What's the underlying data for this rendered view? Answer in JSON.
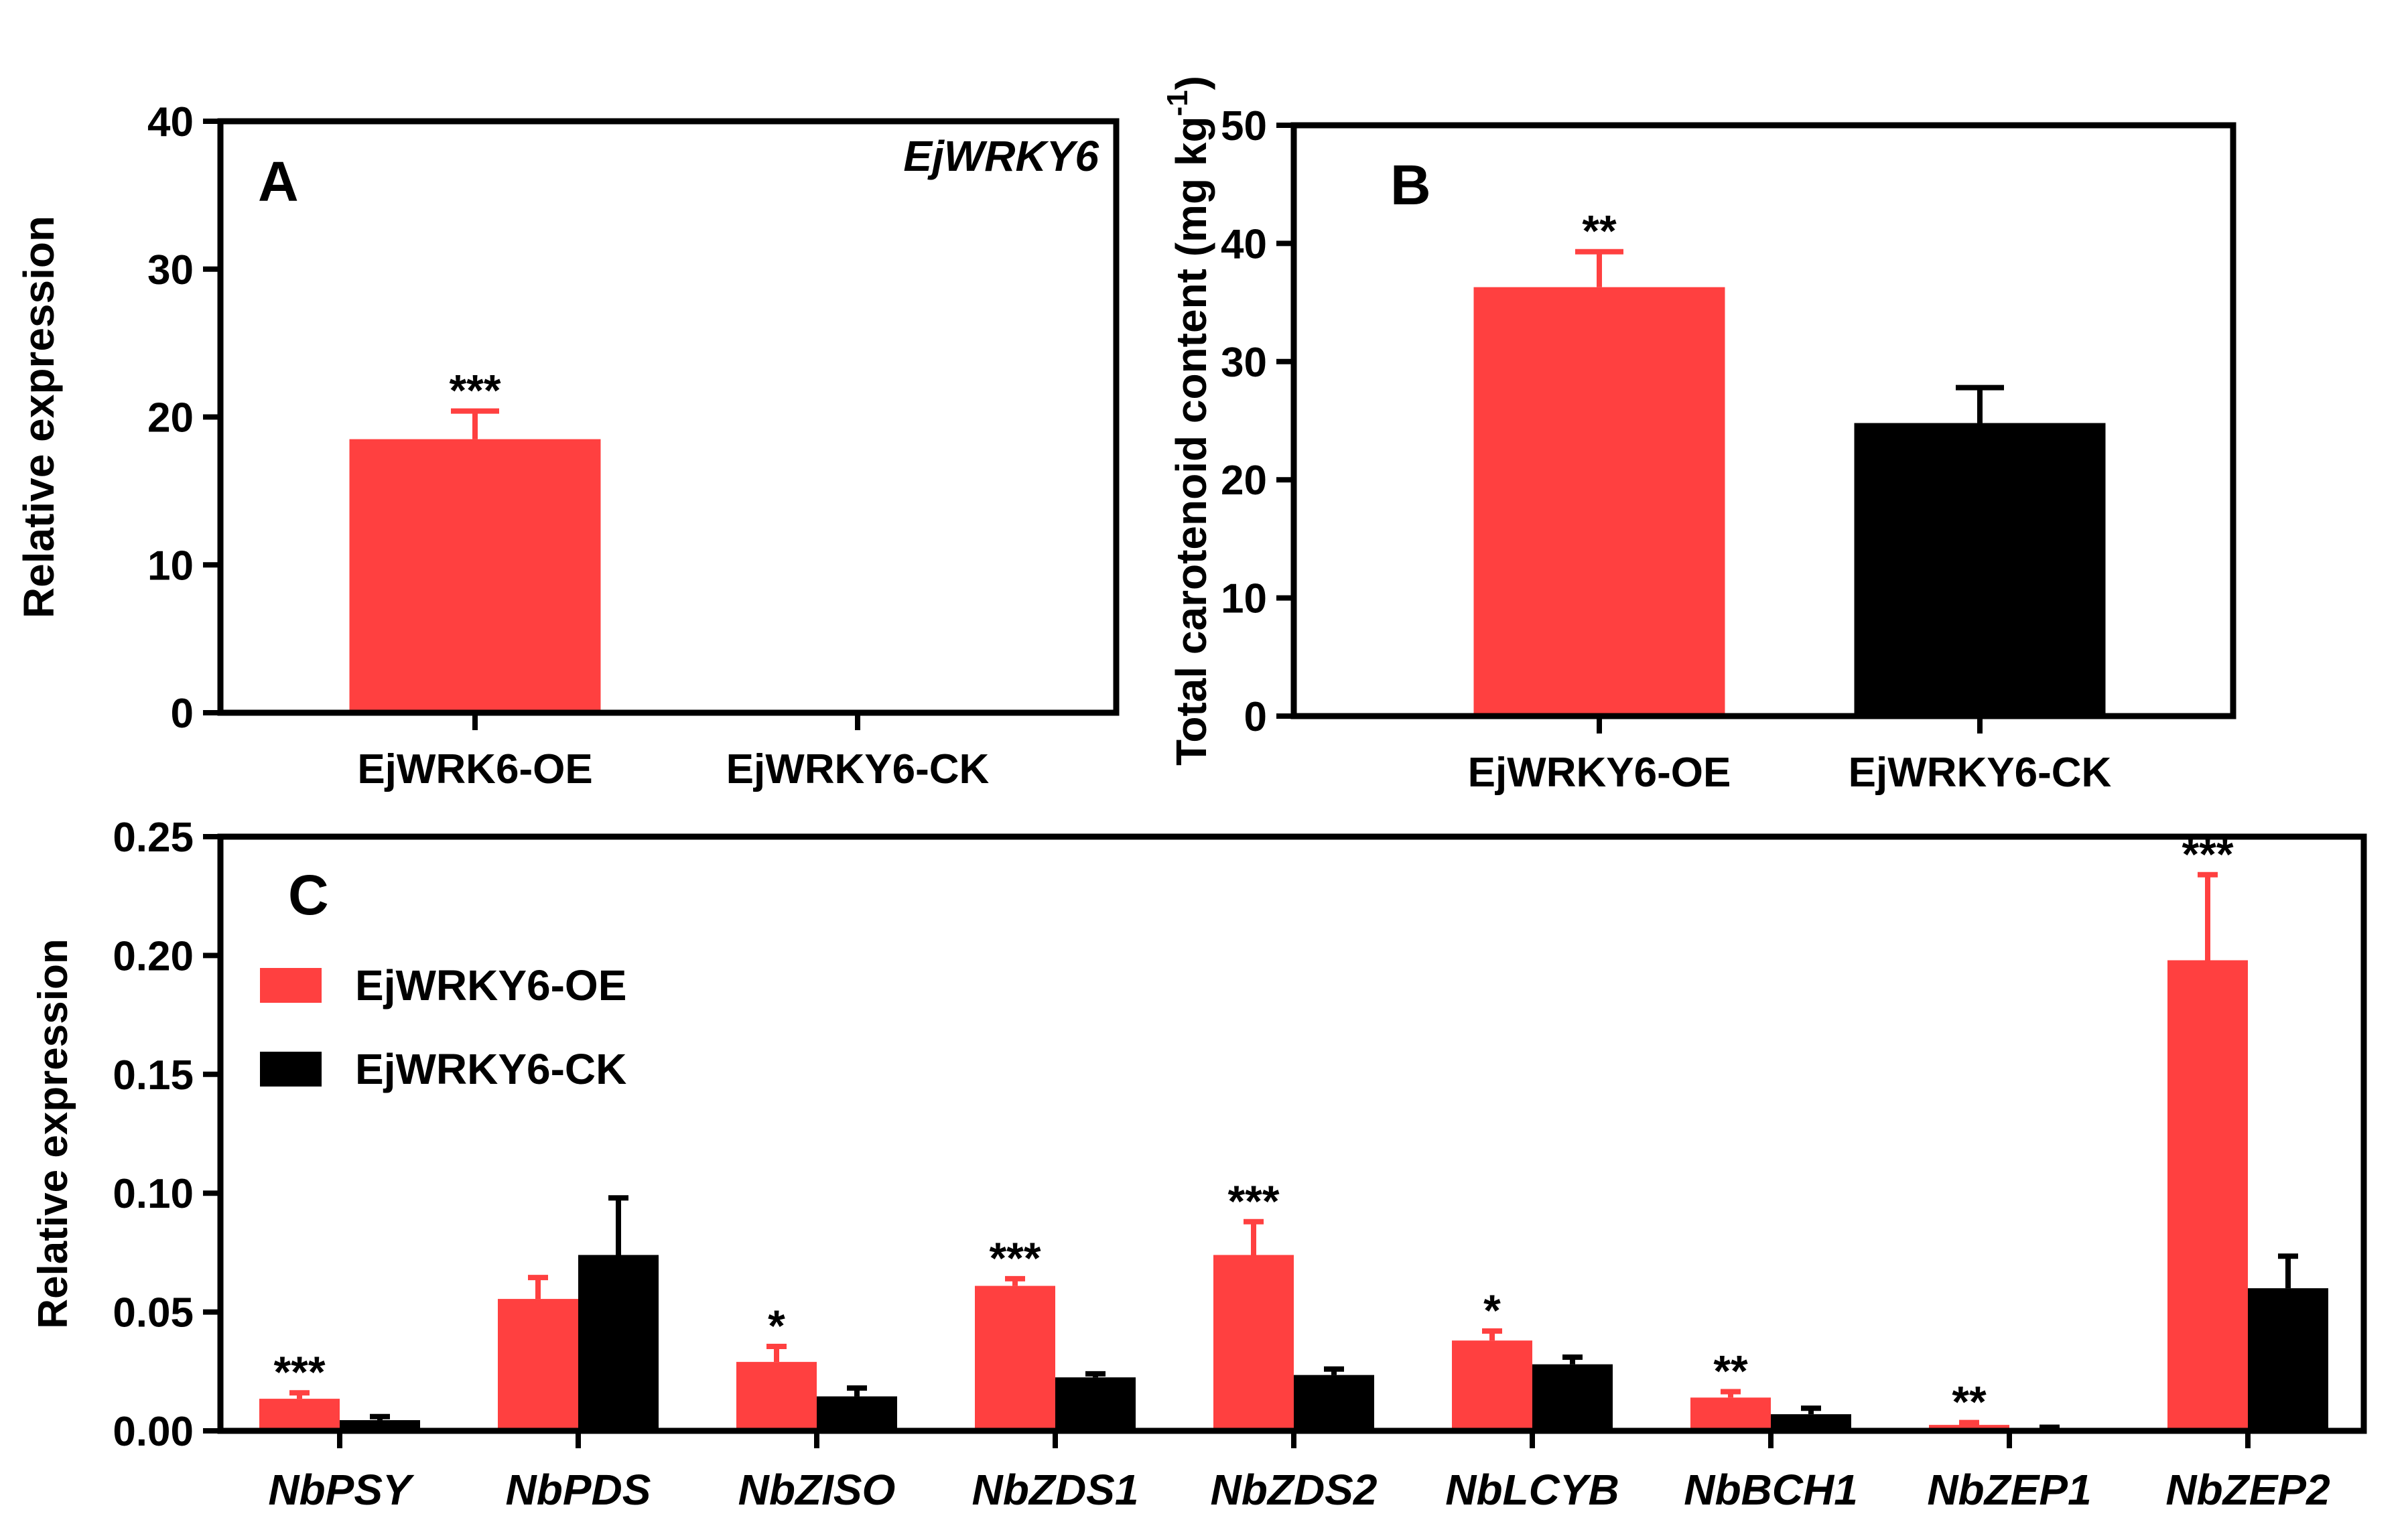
{
  "colors": {
    "oe": "#ff4040",
    "ck": "#000000",
    "axis": "#000000"
  },
  "chart_data": [
    {
      "type": "bar",
      "panel_label": "A",
      "annotation": "EjWRKY6",
      "ylabel": "Relative expression",
      "ylim": [
        0,
        40
      ],
      "yticks": [
        "0",
        "10",
        "20",
        "30",
        "40"
      ],
      "categories": [
        "EjWRK6-OE",
        "EjWRKY6-CK"
      ],
      "values": [
        18.5,
        0
      ],
      "errors": [
        1.9,
        0
      ],
      "significance": [
        "***",
        ""
      ]
    },
    {
      "type": "bar",
      "panel_label": "B",
      "ylabel": "Total carotenoid content (mg kg",
      "ylabel_sup": "-1",
      "ylabel_end": ")",
      "ylim": [
        0,
        50
      ],
      "yticks": [
        "0",
        "10",
        "20",
        "30",
        "40",
        "50"
      ],
      "categories": [
        "EjWRKY6-OE",
        "EjWRKY6-CK"
      ],
      "values": [
        36.3,
        24.8
      ],
      "errors": [
        3.0,
        3.0
      ],
      "significance": [
        "**",
        ""
      ]
    },
    {
      "type": "bar",
      "panel_label": "C",
      "ylabel": "Relative expression",
      "ylim": [
        0,
        0.25
      ],
      "yticks": [
        "0.00",
        "0.05",
        "0.10",
        "0.15",
        "0.20",
        "0.25"
      ],
      "categories": [
        "NbPSY",
        "NbPDS",
        "NbZISO",
        "NbZDS1",
        "NbZDS2",
        "NbLCYB",
        "NbBCH1",
        "NbZEP1",
        "NbZEP2"
      ],
      "series": [
        {
          "name": "EjWRKY6-OE",
          "values": [
            0.0135,
            0.0555,
            0.029,
            0.061,
            0.074,
            0.038,
            0.014,
            0.0025,
            0.198
          ],
          "errors": [
            0.0025,
            0.009,
            0.0065,
            0.003,
            0.014,
            0.004,
            0.0025,
            0.001,
            0.036
          ]
        },
        {
          "name": "EjWRKY6-CK",
          "values": [
            0.0045,
            0.074,
            0.0145,
            0.0225,
            0.0235,
            0.028,
            0.007,
            0.001,
            0.06
          ],
          "errors": [
            0.0015,
            0.024,
            0.0035,
            0.0015,
            0.0025,
            0.003,
            0.0025,
            0.0005,
            0.0135
          ]
        }
      ],
      "significance": [
        "***",
        "",
        "*",
        "***",
        "***",
        "*",
        "**",
        "**",
        "***"
      ]
    }
  ]
}
